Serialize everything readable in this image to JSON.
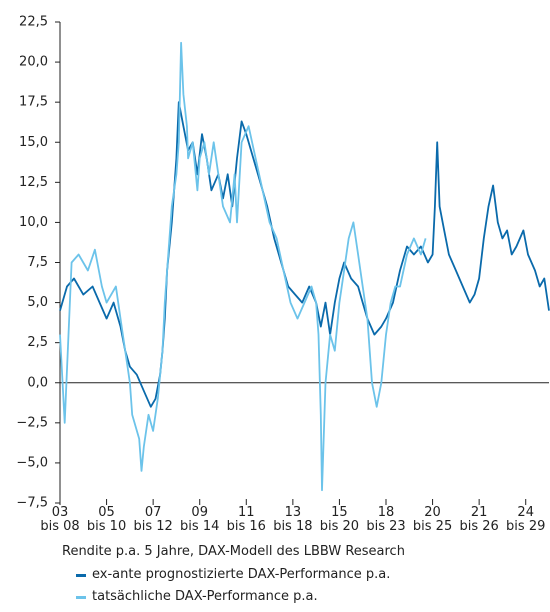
{
  "chart_data": {
    "type": "line",
    "caption": "Rendite p.a. 5 Jahre, DAX-Modell des LBBW Research",
    "xlim": [
      0,
      21
    ],
    "xticks": [
      {
        "value": 0,
        "label": "03\nbis 08"
      },
      {
        "value": 2,
        "label": "05\nbis 10"
      },
      {
        "value": 4,
        "label": "07\nbis 12"
      },
      {
        "value": 6,
        "label": "09\nbis 14"
      },
      {
        "value": 8,
        "label": "11\nbis 16"
      },
      {
        "value": 10,
        "label": "13\nbis 18"
      },
      {
        "value": 12,
        "label": "15\nbis 20"
      },
      {
        "value": 14,
        "label": "18\nbis 23"
      },
      {
        "value": 16,
        "label": "20\nbis 25"
      },
      {
        "value": 18,
        "label": "21\nbis 26"
      },
      {
        "value": 20,
        "label": "24\nbis 29"
      }
    ],
    "ylim": [
      -7.5,
      22.5
    ],
    "yticks": [
      {
        "value": 22.5,
        "label": "22,5"
      },
      {
        "value": 20,
        "label": "20,0"
      },
      {
        "value": 17.5,
        "label": "17,5"
      },
      {
        "value": 15,
        "label": "15,0"
      },
      {
        "value": 12.5,
        "label": "12,5"
      },
      {
        "value": 10,
        "label": "10,0"
      },
      {
        "value": 7.5,
        "label": "7,5"
      },
      {
        "value": 5,
        "label": "5,0"
      },
      {
        "value": 2.5,
        "label": "2,5"
      },
      {
        "value": 0,
        "label": "0,0"
      },
      {
        "value": -2.5,
        "label": "−2,5"
      },
      {
        "value": -5,
        "label": "−5,0"
      },
      {
        "value": -7.5,
        "label": "−7,5"
      }
    ],
    "series": [
      {
        "name": "ex-ante prognostizierte DAX-Performance p.a.",
        "color": "#0a6aab",
        "x": [
          0,
          0.3,
          0.6,
          1.0,
          1.4,
          1.7,
          2.0,
          2.3,
          2.6,
          2.8,
          3.0,
          3.3,
          3.6,
          3.9,
          4.1,
          4.3,
          4.4,
          4.5,
          4.6,
          4.8,
          5.0,
          5.1,
          5.3,
          5.5,
          5.7,
          5.9,
          6.1,
          6.3,
          6.5,
          6.8,
          7.0,
          7.2,
          7.4,
          7.6,
          7.8,
          8.0,
          8.3,
          8.6,
          8.9,
          9.2,
          9.5,
          9.8,
          10.1,
          10.4,
          10.7,
          11.0,
          11.2,
          11.4,
          11.6,
          11.8,
          12.0,
          12.2,
          12.5,
          12.8,
          13.0,
          13.2,
          13.5,
          13.8,
          14.0,
          14.3,
          14.6,
          14.9,
          15.2,
          15.5,
          15.8,
          16.0,
          16.1,
          16.2,
          16.3,
          16.5,
          16.7,
          17.0,
          17.3,
          17.6,
          17.8,
          18.0,
          18.2,
          18.4,
          18.6,
          18.8,
          19.0,
          19.2,
          19.4,
          19.6,
          19.9,
          20.1,
          20.4,
          20.6,
          20.8,
          21.0
        ],
        "values": [
          4.5,
          6,
          6.5,
          5.5,
          6,
          5,
          4,
          5,
          3.5,
          2,
          1,
          0.5,
          -0.5,
          -1.5,
          -1,
          0.5,
          2,
          4,
          7,
          10,
          14,
          17.5,
          16,
          14.5,
          15,
          13,
          15.5,
          14,
          12,
          13,
          11.5,
          13,
          11,
          14,
          16.3,
          15.5,
          14,
          12.5,
          11,
          9,
          7.5,
          6,
          5.5,
          5,
          6,
          5,
          3.5,
          5,
          3,
          5,
          6.5,
          7.5,
          6.5,
          6,
          5,
          4,
          3,
          3.5,
          4,
          5,
          7,
          8.5,
          8,
          8.5,
          7.5,
          8,
          11,
          15,
          11,
          9.5,
          8,
          7,
          6,
          5,
          5.5,
          6.5,
          9,
          11,
          12.3,
          10,
          9,
          9.5,
          8,
          8.5,
          9.5,
          8,
          7,
          6,
          6.5,
          4.5
        ]
      },
      {
        "name": "tatsächliche DAX-Performance p.a.",
        "color": "#6cc3ea",
        "x": [
          0,
          0.2,
          0.5,
          0.8,
          1.2,
          1.5,
          1.8,
          2.0,
          2.4,
          2.6,
          2.8,
          3.0,
          3.1,
          3.4,
          3.5,
          3.6,
          3.8,
          4.0,
          4.2,
          4.4,
          4.5,
          4.6,
          4.8,
          5.0,
          5.1,
          5.2,
          5.3,
          5.45,
          5.5,
          5.7,
          5.9,
          6.0,
          6.2,
          6.4,
          6.6,
          7.0,
          7.3,
          7.5,
          7.6,
          7.8,
          8.1,
          8.4,
          8.7,
          9.0,
          9.3,
          9.6,
          9.9,
          10.2,
          10.5,
          10.8,
          11.0,
          11.1,
          11.2,
          11.25,
          11.4,
          11.6,
          11.8,
          12.0,
          12.2,
          12.4,
          12.6,
          12.8,
          13.0,
          13.2,
          13.4,
          13.6,
          13.8,
          14.0,
          14.2,
          14.4,
          14.6,
          14.9,
          15.2,
          15.5,
          15.7
        ],
        "values": [
          3,
          -2.5,
          7.5,
          8,
          7,
          8.3,
          6,
          5,
          6,
          4,
          2,
          0,
          -2,
          -3.5,
          -5.5,
          -4,
          -2,
          -3,
          -1,
          2,
          5,
          7,
          11,
          13,
          15,
          21.2,
          18,
          16,
          14,
          15,
          12,
          14,
          15,
          13,
          15,
          11,
          10,
          13,
          10,
          15,
          16,
          14,
          12,
          10,
          9,
          7,
          5,
          4,
          5,
          6,
          5,
          3,
          -2,
          -6.7,
          0,
          3,
          2,
          5,
          7,
          9,
          10,
          8,
          6,
          4,
          0,
          -1.5,
          0,
          3,
          5,
          6,
          6,
          8,
          9,
          8,
          9
        ]
      }
    ]
  }
}
